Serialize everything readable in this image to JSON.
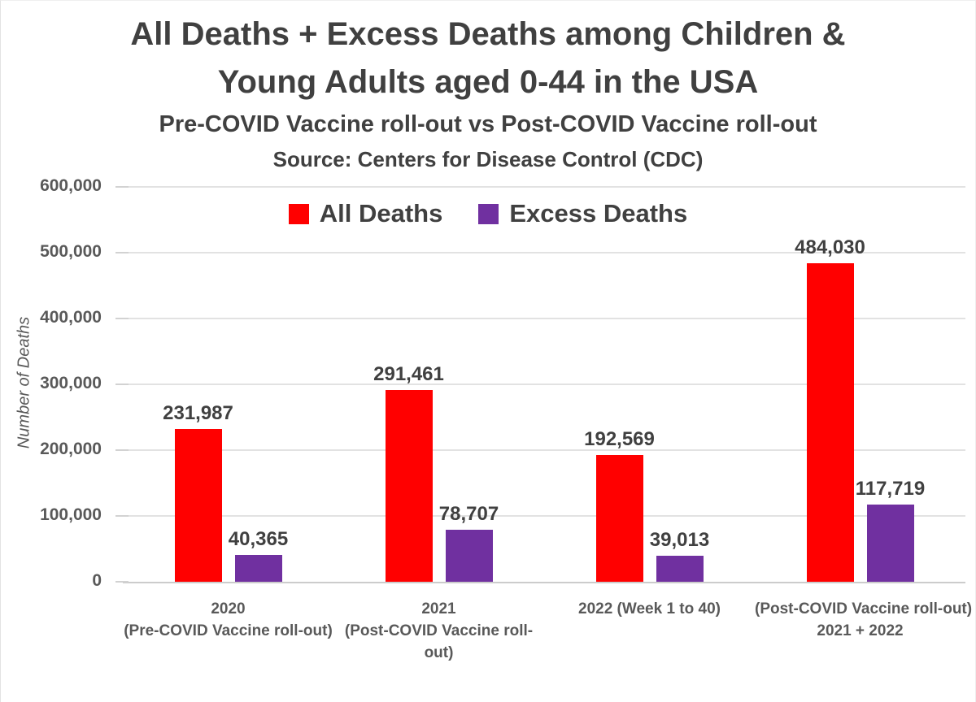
{
  "title": {
    "line1": "All Deaths + Excess Deaths among Children &",
    "line2": "Young Adults aged 0-44 in the USA",
    "subtitle": "Pre-COVID Vaccine roll-out vs Post-COVID Vaccine roll-out",
    "source": "Source: Centers for Disease Control (CDC)"
  },
  "colors": {
    "all_deaths": "#FF0000",
    "excess_deaths": "#7030A0",
    "title_text": "#404040",
    "axis_text": "#595959",
    "gridline": "#E2E2E2",
    "axis_line": "#CCCCCC"
  },
  "chart_data": {
    "type": "bar",
    "title": "All Deaths + Excess Deaths among Children & Young Adults aged 0-44 in the USA",
    "subtitle": "Pre-COVID Vaccine roll-out vs Post-COVID Vaccine roll-out",
    "source": "Source: Centers for Disease Control (CDC)",
    "ylabel": "Number of Deaths",
    "xlabel": "",
    "ylim": [
      0,
      600000
    ],
    "ytick_interval": 100000,
    "grid": true,
    "legend_position": "top-center-inside",
    "yticks": [
      {
        "value": 0,
        "label": "0"
      },
      {
        "value": 100000,
        "label": "100,000"
      },
      {
        "value": 200000,
        "label": "200,000"
      },
      {
        "value": 300000,
        "label": "300,000"
      },
      {
        "value": 400000,
        "label": "400,000"
      },
      {
        "value": 500000,
        "label": "500,000"
      },
      {
        "value": 600000,
        "label": "600,000"
      }
    ],
    "categories": [
      "2020 (Pre-COVID Vaccine roll-out)",
      "2021 (Post-COVID Vaccine roll-out)",
      "2022 (Week 1 to 40)",
      "(Post-COVID Vaccine roll-out) 2021 + 2022"
    ],
    "category_label_lines": [
      [
        "2020",
        "(Pre-COVID Vaccine roll-out)"
      ],
      [
        "2021",
        "(Post-COVID Vaccine roll-",
        "out)"
      ],
      [
        "2022 (Week 1 to 40)"
      ],
      [
        "(Post-COVID Vaccine roll-out)",
        "2021 + 2022"
      ]
    ],
    "series": [
      {
        "name": "All Deaths",
        "color": "#FF0000",
        "values": [
          231987,
          291461,
          192569,
          484030
        ],
        "value_labels": [
          "231,987",
          "291,461",
          "192,569",
          "484,030"
        ]
      },
      {
        "name": "Excess Deaths",
        "color": "#7030A0",
        "values": [
          40365,
          78707,
          39013,
          117719
        ],
        "value_labels": [
          "40,365",
          "78,707",
          "39,013",
          "117,719"
        ]
      }
    ]
  }
}
